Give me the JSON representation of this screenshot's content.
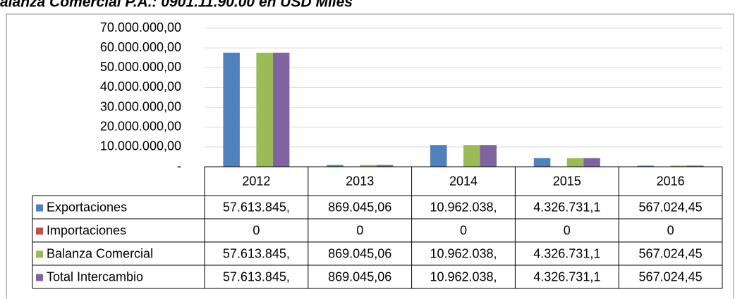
{
  "chart_data": {
    "type": "bar",
    "title": "alanza Comercial P.A.: 0901.11.90.00 en USD Miles",
    "categories": [
      "2012",
      "2013",
      "2014",
      "2015",
      "2016"
    ],
    "series": [
      {
        "name": "Exportaciones",
        "color": "#4f81bd",
        "values": [
          57613845,
          869045.06,
          10962038,
          4326731.1,
          567024.45
        ],
        "value_labels": [
          "57.613.845,",
          "869.045,06",
          "10.962.038,",
          "4.326.731,1",
          "567.024,45"
        ]
      },
      {
        "name": "Importaciones",
        "color": "#c0504d",
        "values": [
          0,
          0,
          0,
          0,
          0
        ]
      },
      {
        "name": "Balanza Comercial",
        "color": "#9bbb59",
        "values": [
          57613845,
          869045.06,
          10962038,
          4326731.1,
          567024.45
        ],
        "value_labels": [
          "57.613.845,",
          "869.045,06",
          "10.962.038,",
          "4.326.731,1",
          "567.024,45"
        ]
      },
      {
        "name": "Total Intercambio",
        "color": "#8064a2",
        "values": [
          57613845,
          869045.06,
          10962038,
          4326731.1,
          567024.45
        ],
        "value_labels": [
          "57.613.845,",
          "869.045,06",
          "10.962.038,",
          "4.326.731,1",
          "567.024,45"
        ]
      }
    ],
    "ylim": [
      0,
      70000000
    ],
    "yticks": [
      {
        "value": 0,
        "label": "-"
      },
      {
        "value": 10000000,
        "label": "10.000.000,00"
      },
      {
        "value": 20000000,
        "label": "20.000.000,00"
      },
      {
        "value": 30000000,
        "label": "30.000.000,00"
      },
      {
        "value": 40000000,
        "label": "40.000.000,00"
      },
      {
        "value": 50000000,
        "label": "50.000.000,00"
      },
      {
        "value": 60000000,
        "label": "60.000.000,00"
      },
      {
        "value": 70000000,
        "label": "70.000.000,00"
      }
    ],
    "grid": true
  }
}
